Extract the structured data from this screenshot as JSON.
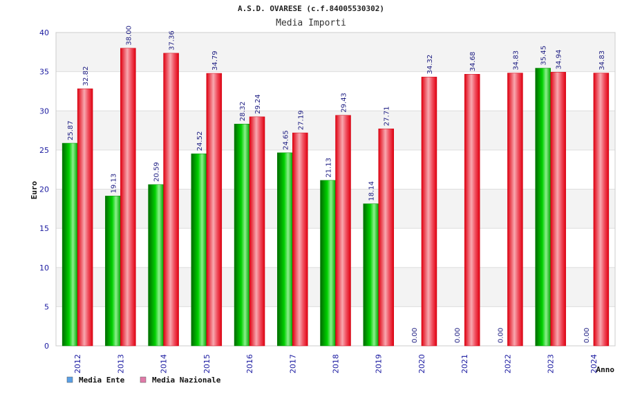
{
  "chart_data": {
    "type": "bar",
    "title": "A.S.D. OVARESE (c.f.84005530302)",
    "subtitle": "Media Importi",
    "xlabel": "Anno",
    "ylabel": "Euro",
    "ylim": [
      0,
      40
    ],
    "yticks": [
      0,
      5,
      10,
      15,
      20,
      25,
      30,
      35,
      40
    ],
    "grid": true,
    "legend_position": "bottom-left",
    "categories": [
      "2012",
      "2013",
      "2014",
      "2015",
      "2016",
      "2017",
      "2018",
      "2019",
      "2020",
      "2021",
      "2022",
      "2023",
      "2024"
    ],
    "series": [
      {
        "name": "Media Ente",
        "color": "#00c000",
        "legend_color": "#5aa0e6",
        "values": [
          25.87,
          19.13,
          20.59,
          24.52,
          28.32,
          24.65,
          21.13,
          18.14,
          0.0,
          0.0,
          0.0,
          35.45,
          0.0
        ],
        "labels": [
          "25.87",
          "19.13",
          "20.59",
          "24.52",
          "28.32",
          "24.65",
          "21.13",
          "18.14",
          "0.00",
          "0.00",
          "0.00",
          "35.45",
          "0.00"
        ]
      },
      {
        "name": "Media Nazionale",
        "color": "#e8101c",
        "legend_color": "#e07aa8",
        "values": [
          32.82,
          38.0,
          37.36,
          34.79,
          29.24,
          27.19,
          29.43,
          27.71,
          34.32,
          34.68,
          34.83,
          34.94,
          34.83
        ],
        "labels": [
          "32.82",
          "38.00",
          "37.36",
          "34.79",
          "29.24",
          "27.19",
          "29.43",
          "27.71",
          "34.32",
          "34.68",
          "34.83",
          "34.94",
          "34.83"
        ]
      }
    ]
  }
}
